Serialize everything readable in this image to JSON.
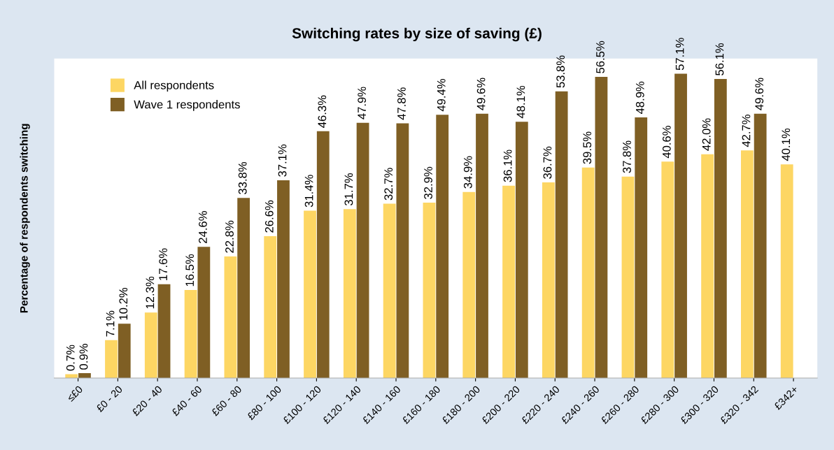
{
  "chart_data": {
    "type": "bar",
    "title": "Switching rates by size of saving (£)",
    "ylabel": "Percentage of respondents switching",
    "categories": [
      "≤£0",
      "£0 - 20",
      "£20 - 40",
      "£40 - 60",
      "£60 - 80",
      "£80 - 100",
      "£100 - 120",
      "£120 - 140",
      "£140 - 160",
      "£160 - 180",
      "£180 - 200",
      "£200 - 220",
      "£220 - 240",
      "£240 - 260",
      "£260 - 280",
      "£280 - 300",
      "£300 - 320",
      "£320 - 342",
      "£342+"
    ],
    "series": [
      {
        "name": "All respondents",
        "color": "#fdd663",
        "values": [
          0.7,
          7.1,
          12.3,
          16.5,
          22.8,
          26.6,
          31.4,
          31.7,
          32.7,
          32.9,
          34.9,
          36.1,
          36.7,
          39.5,
          37.8,
          40.6,
          42.0,
          42.7,
          40.1
        ],
        "value_labels": [
          "0.7%",
          "7.1%",
          "12.3%",
          "16.5%",
          "22.8%",
          "26.6%",
          "31.4%",
          "31.7%",
          "32.7%",
          "32.9%",
          "34.9%",
          "36.1%",
          "36.7%",
          "39.5%",
          "37.8%",
          "40.6%",
          "42.0%",
          "42.7%",
          "40.1%"
        ]
      },
      {
        "name": "Wave 1 respondents",
        "color": "#7f5f24",
        "values": [
          0.9,
          10.2,
          17.6,
          24.6,
          33.8,
          37.1,
          46.3,
          47.9,
          47.8,
          49.4,
          49.6,
          48.1,
          53.8,
          56.5,
          48.9,
          57.1,
          56.1,
          49.6,
          null
        ],
        "value_labels": [
          "0.9%",
          "10.2%",
          "17.6%",
          "24.6%",
          "33.8%",
          "37.1%",
          "46.3%",
          "47.9%",
          "47.8%",
          "49.4%",
          "49.6%",
          "48.1%",
          "53.8%",
          "56.5%",
          "48.9%",
          "57.1%",
          "56.1%",
          "49.6%",
          null
        ]
      }
    ],
    "legend": "top left"
  }
}
